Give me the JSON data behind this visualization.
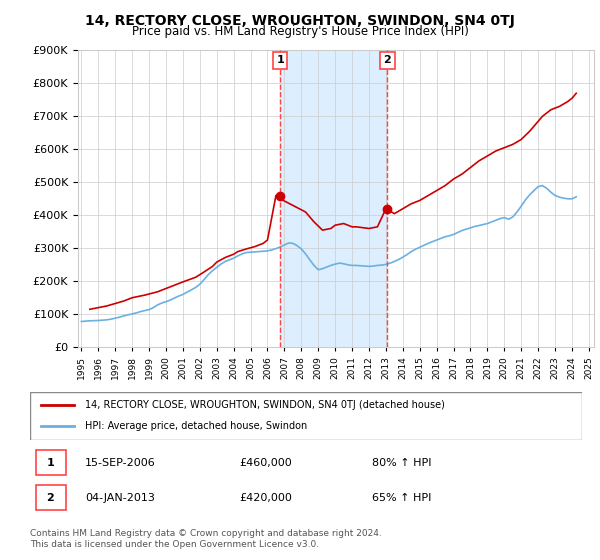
{
  "title": "14, RECTORY CLOSE, WROUGHTON, SWINDON, SN4 0TJ",
  "subtitle": "Price paid vs. HM Land Registry's House Price Index (HPI)",
  "ylim": [
    0,
    900000
  ],
  "yticks": [
    0,
    100000,
    200000,
    300000,
    400000,
    500000,
    600000,
    700000,
    800000,
    900000
  ],
  "ytick_labels": [
    "£0",
    "£100K",
    "£200K",
    "£300K",
    "£400K",
    "£500K",
    "£600K",
    "£700K",
    "£800K",
    "£900K"
  ],
  "transactions": [
    {
      "date": "2006-09-15",
      "price": 460000,
      "label": "1"
    },
    {
      "date": "2013-01-04",
      "price": 420000,
      "label": "2"
    }
  ],
  "transaction_labels": [
    {
      "num": 1,
      "date": "15-SEP-2006",
      "price": "£460,000",
      "hpi": "80% ↑ HPI"
    },
    {
      "num": 2,
      "date": "04-JAN-2013",
      "price": "£420,000",
      "hpi": "65% ↑ HPI"
    }
  ],
  "hpi_line_color": "#6ab0e0",
  "price_line_color": "#cc0000",
  "transaction_vline_color": "#ff4444",
  "shade_color": "#ddeeff",
  "background_color": "#ffffff",
  "grid_color": "#cccccc",
  "legend_label_price": "14, RECTORY CLOSE, WROUGHTON, SWINDON, SN4 0TJ (detached house)",
  "legend_label_hpi": "HPI: Average price, detached house, Swindon",
  "footer": "Contains HM Land Registry data © Crown copyright and database right 2024.\nThis data is licensed under the Open Government Licence v3.0.",
  "hpi_data": {
    "years": [
      1995.0,
      1995.25,
      1995.5,
      1995.75,
      1996.0,
      1996.25,
      1996.5,
      1996.75,
      1997.0,
      1997.25,
      1997.5,
      1997.75,
      1998.0,
      1998.25,
      1998.5,
      1998.75,
      1999.0,
      1999.25,
      1999.5,
      1999.75,
      2000.0,
      2000.25,
      2000.5,
      2000.75,
      2001.0,
      2001.25,
      2001.5,
      2001.75,
      2002.0,
      2002.25,
      2002.5,
      2002.75,
      2003.0,
      2003.25,
      2003.5,
      2003.75,
      2004.0,
      2004.25,
      2004.5,
      2004.75,
      2005.0,
      2005.25,
      2005.5,
      2005.75,
      2006.0,
      2006.25,
      2006.5,
      2006.75,
      2007.0,
      2007.25,
      2007.5,
      2007.75,
      2008.0,
      2008.25,
      2008.5,
      2008.75,
      2009.0,
      2009.25,
      2009.5,
      2009.75,
      2010.0,
      2010.25,
      2010.5,
      2010.75,
      2011.0,
      2011.25,
      2011.5,
      2011.75,
      2012.0,
      2012.25,
      2012.5,
      2012.75,
      2013.0,
      2013.25,
      2013.5,
      2013.75,
      2014.0,
      2014.25,
      2014.5,
      2014.75,
      2015.0,
      2015.25,
      2015.5,
      2015.75,
      2016.0,
      2016.25,
      2016.5,
      2016.75,
      2017.0,
      2017.25,
      2017.5,
      2017.75,
      2018.0,
      2018.25,
      2018.5,
      2018.75,
      2019.0,
      2019.25,
      2019.5,
      2019.75,
      2020.0,
      2020.25,
      2020.5,
      2020.75,
      2021.0,
      2021.25,
      2021.5,
      2021.75,
      2022.0,
      2022.25,
      2022.5,
      2022.75,
      2023.0,
      2023.25,
      2023.5,
      2023.75,
      2024.0,
      2024.25
    ],
    "values": [
      78000,
      79000,
      80000,
      80500,
      81000,
      82000,
      83000,
      85000,
      88000,
      91000,
      95000,
      98000,
      101000,
      104000,
      108000,
      111000,
      114000,
      120000,
      128000,
      134000,
      138000,
      143000,
      149000,
      155000,
      160000,
      167000,
      174000,
      181000,
      191000,
      205000,
      220000,
      232000,
      242000,
      252000,
      260000,
      265000,
      270000,
      277000,
      283000,
      287000,
      288000,
      289000,
      290000,
      291000,
      292000,
      295000,
      299000,
      304000,
      310000,
      316000,
      315000,
      308000,
      298000,
      283000,
      265000,
      248000,
      235000,
      238000,
      243000,
      248000,
      252000,
      255000,
      253000,
      250000,
      248000,
      248000,
      247000,
      246000,
      245000,
      246000,
      248000,
      249000,
      251000,
      255000,
      260000,
      266000,
      273000,
      281000,
      290000,
      297000,
      303000,
      309000,
      315000,
      320000,
      325000,
      330000,
      335000,
      338000,
      342000,
      348000,
      354000,
      358000,
      362000,
      366000,
      369000,
      372000,
      375000,
      380000,
      385000,
      390000,
      393000,
      388000,
      395000,
      410000,
      428000,
      447000,
      462000,
      475000,
      487000,
      490000,
      482000,
      470000,
      460000,
      455000,
      452000,
      450000,
      450000,
      456000
    ]
  },
  "price_data": {
    "years": [
      1995.5,
      1996.5,
      1997.5,
      1998.0,
      1998.75,
      1999.5,
      2000.0,
      2000.5,
      2001.0,
      2001.75,
      2002.25,
      2002.75,
      2003.0,
      2003.5,
      2004.0,
      2004.25,
      2004.75,
      2005.25,
      2005.75,
      2006.0,
      2006.5,
      2006.75,
      2007.5,
      2008.25,
      2008.75,
      2009.25,
      2009.75,
      2010.0,
      2010.5,
      2011.0,
      2011.25,
      2012.0,
      2012.5,
      2013.0,
      2013.5,
      2014.0,
      2014.5,
      2015.0,
      2015.5,
      2016.0,
      2016.5,
      2017.0,
      2017.5,
      2018.0,
      2018.5,
      2019.0,
      2019.5,
      2020.0,
      2020.5,
      2021.0,
      2021.5,
      2022.0,
      2022.25,
      2022.75,
      2023.25,
      2023.75,
      2024.0,
      2024.25
    ],
    "values": [
      115000,
      125000,
      140000,
      150000,
      158000,
      168000,
      178000,
      188000,
      198000,
      212000,
      228000,
      245000,
      258000,
      272000,
      282000,
      290000,
      298000,
      305000,
      315000,
      325000,
      460000,
      450000,
      430000,
      410000,
      380000,
      355000,
      360000,
      370000,
      375000,
      365000,
      365000,
      360000,
      365000,
      420000,
      405000,
      420000,
      435000,
      445000,
      460000,
      475000,
      490000,
      510000,
      525000,
      545000,
      565000,
      580000,
      595000,
      605000,
      615000,
      630000,
      655000,
      685000,
      700000,
      720000,
      730000,
      745000,
      755000,
      770000
    ]
  }
}
